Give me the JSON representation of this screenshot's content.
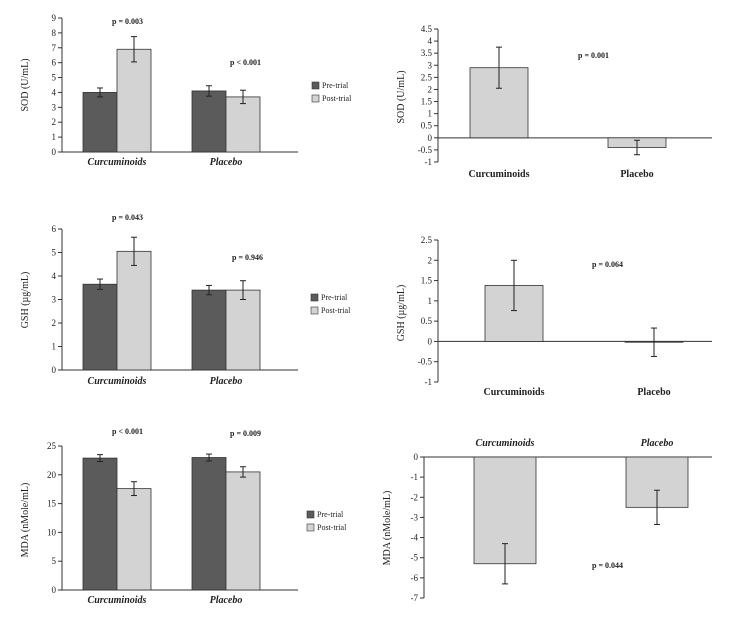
{
  "colors": {
    "pre": "#5b5b5b",
    "post": "#d3d3d3",
    "change": "#d3d3d3",
    "axis": "#333333",
    "error": "#222222"
  },
  "chart_data": [
    {
      "id": "sod-groups",
      "type": "bar",
      "ylabel": "SOD (U/mL)",
      "ylim": [
        0,
        9
      ],
      "yticks": [
        0,
        1,
        2,
        3,
        4,
        5,
        6,
        7,
        8,
        9
      ],
      "categories": [
        "Curcuminoids",
        "Placebo"
      ],
      "series": [
        {
          "name": "Pre-trial",
          "values": [
            4.0,
            4.1
          ],
          "errors": [
            0.3,
            0.35
          ]
        },
        {
          "name": "Post-trial",
          "values": [
            6.9,
            3.7
          ],
          "errors": [
            0.85,
            0.45
          ]
        }
      ],
      "annotations": [
        "p = 0.003",
        "p < 0.001"
      ],
      "legend": "right"
    },
    {
      "id": "sod-change",
      "type": "bar",
      "ylabel": "SOD (U/mL)",
      "ylim": [
        -1,
        4.5
      ],
      "yticks": [
        -1,
        -0.5,
        0,
        0.5,
        1,
        1.5,
        2,
        2.5,
        3,
        3.5,
        4,
        4.5
      ],
      "categories": [
        "Curcuminoids",
        "Placebo"
      ],
      "series": [
        {
          "values": [
            2.9,
            -0.4
          ],
          "errors": [
            0.85,
            0.3
          ]
        }
      ],
      "annotations": [
        "p = 0.001"
      ]
    },
    {
      "id": "gsh-groups",
      "type": "bar",
      "ylabel": "GSH (µg/mL)",
      "ylim": [
        0,
        6
      ],
      "yticks": [
        0,
        1,
        2,
        3,
        4,
        5,
        6
      ],
      "categories": [
        "Curcuminoids",
        "Placebo"
      ],
      "series": [
        {
          "name": "Pre-trial",
          "values": [
            3.65,
            3.4
          ],
          "errors": [
            0.22,
            0.2
          ]
        },
        {
          "name": "Post-trial",
          "values": [
            5.05,
            3.4
          ],
          "errors": [
            0.6,
            0.4
          ]
        }
      ],
      "annotations": [
        "p = 0.043",
        "p = 0.946"
      ],
      "legend": "right"
    },
    {
      "id": "gsh-change",
      "type": "bar",
      "ylabel": "GSH (µg/mL)",
      "ylim": [
        -1,
        2.5
      ],
      "yticks": [
        -1,
        -0.5,
        0,
        0.5,
        1,
        1.5,
        2,
        2.5
      ],
      "categories": [
        "Curcuminoids",
        "Placebo"
      ],
      "series": [
        {
          "values": [
            1.38,
            -0.02
          ],
          "errors": [
            0.62,
            0.35
          ]
        }
      ],
      "annotations": [
        "p = 0.064"
      ]
    },
    {
      "id": "mda-groups",
      "type": "bar",
      "ylabel": "MDA (nMole/mL)",
      "ylim": [
        0,
        25
      ],
      "yticks": [
        0,
        5,
        10,
        15,
        20,
        25
      ],
      "categories": [
        "Curcuminoids",
        "Placebo"
      ],
      "series": [
        {
          "name": "Pre-trial",
          "values": [
            22.9,
            23.0
          ],
          "errors": [
            0.6,
            0.6
          ]
        },
        {
          "name": "Post-trial",
          "values": [
            17.6,
            20.5
          ],
          "errors": [
            1.2,
            0.9
          ]
        }
      ],
      "annotations": [
        "p < 0.001",
        "p = 0.009"
      ],
      "legend": "right"
    },
    {
      "id": "mda-change",
      "type": "bar",
      "ylabel": "MDA (nMole/mL)",
      "ylim": [
        -7,
        0
      ],
      "yticks": [
        -7,
        -6,
        -5,
        -4,
        -3,
        -2,
        -1,
        0
      ],
      "categories": [
        "Curcuminoids",
        "Placebo"
      ],
      "series": [
        {
          "values": [
            -5.3,
            -2.5
          ],
          "errors": [
            1.0,
            0.85
          ]
        }
      ],
      "annotations": [
        "p = 0.044"
      ]
    }
  ]
}
